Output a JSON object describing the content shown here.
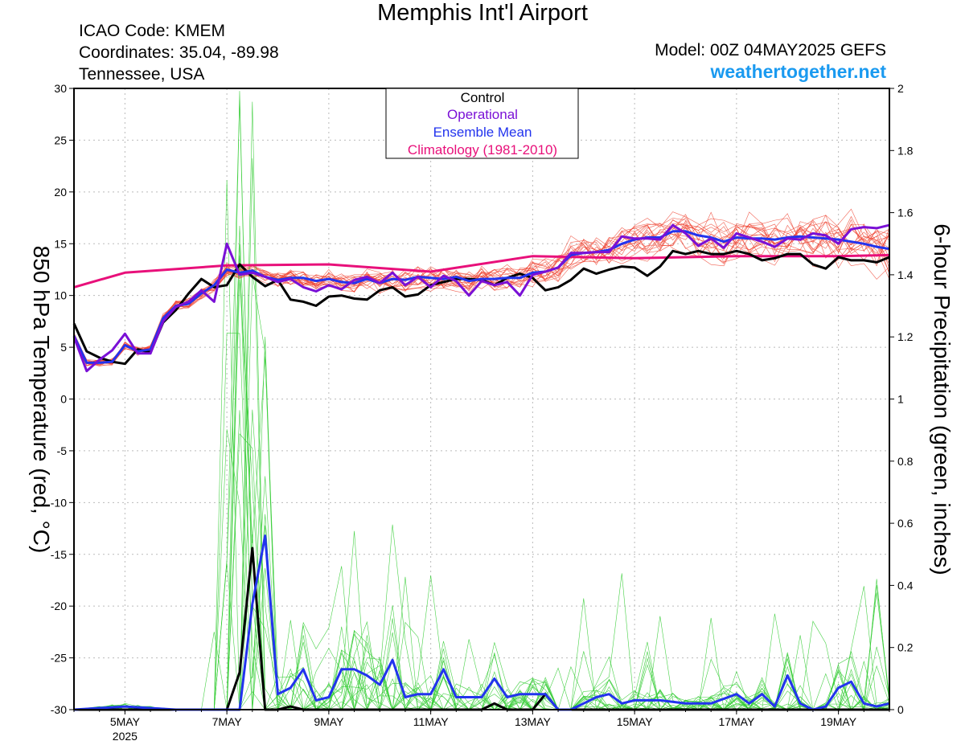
{
  "header": {
    "title": "Memphis Int'l Airport",
    "icao": "ICAO Code: KMEM",
    "coordinates": "Coordinates: 35.04, -89.98",
    "location": "Tennessee, USA",
    "model": "Model: 00Z 04MAY2025 GEFS",
    "site": "weathertogether.net"
  },
  "colors": {
    "control": "#000000",
    "operational": "#7a10d6",
    "ensemble_mean": "#2233ee",
    "climatology": "#e8107a",
    "members_temp": "#ee4433",
    "members_precip": "#33cc33",
    "site": "#1a9af0"
  },
  "chart_data": {
    "type": "line",
    "ylabel": "850 hPa Temperature (red, °C)",
    "y2label": "6-hour Precipitation (green, inches)",
    "ylim": [
      -30,
      30
    ],
    "y2lim": [
      0,
      2
    ],
    "yticks": [
      30,
      25,
      20,
      15,
      10,
      5,
      0,
      -5,
      -10,
      -15,
      -20,
      -25,
      -30
    ],
    "y2ticks": [
      2,
      1.8,
      1.6,
      1.4,
      1.2,
      1,
      0.8,
      0.6,
      0.4,
      0.2,
      0
    ],
    "xlim": [
      "2025-05-04T00",
      "2025-05-20T00"
    ],
    "xtick_labels": [
      {
        "date": "2025-05-05T00",
        "label": "5MAY",
        "sublabel": "2025"
      },
      {
        "date": "2025-05-07T00",
        "label": "7MAY"
      },
      {
        "date": "2025-05-09T00",
        "label": "9MAY"
      },
      {
        "date": "2025-05-11T00",
        "label": "11MAY"
      },
      {
        "date": "2025-05-13T00",
        "label": "13MAY"
      },
      {
        "date": "2025-05-15T00",
        "label": "15MAY"
      },
      {
        "date": "2025-05-17T00",
        "label": "17MAY"
      },
      {
        "date": "2025-05-19T00",
        "label": "19MAY"
      }
    ],
    "legend": {
      "placement": "top-center",
      "entries": [
        {
          "label": "Control",
          "color": "#000000"
        },
        {
          "label": "Operational",
          "color": "#7a10d6"
        },
        {
          "label": "Ensemble Mean",
          "color": "#2233ee"
        },
        {
          "label": "Climatology (1981-2010)",
          "color": "#e8107a"
        }
      ]
    },
    "series": [
      {
        "name": "Climatology (1981-2010)",
        "axis": "temperature",
        "x": [
          "2025-05-04T00",
          "2025-05-05T00",
          "2025-05-07T00",
          "2025-05-09T00",
          "2025-05-11T00",
          "2025-05-13T00",
          "2025-05-15T00",
          "2025-05-17T00",
          "2025-05-19T00",
          "2025-05-20T00"
        ],
        "values": [
          10.8,
          12.2,
          12.9,
          13.0,
          12.3,
          13.8,
          13.6,
          13.8,
          13.8,
          13.9
        ]
      },
      {
        "name": "Control",
        "axis": "temperature",
        "x": [
          "2025-05-04T00",
          "2025-05-04T06",
          "2025-05-04T12",
          "2025-05-04T18",
          "2025-05-05T00",
          "2025-05-05T06",
          "2025-05-05T12",
          "2025-05-05T18",
          "2025-05-06T00",
          "2025-05-06T06",
          "2025-05-06T12",
          "2025-05-06T18",
          "2025-05-07T00",
          "2025-05-07T06",
          "2025-05-07T12",
          "2025-05-07T18",
          "2025-05-08T00",
          "2025-05-08T06",
          "2025-05-08T12",
          "2025-05-08T18",
          "2025-05-09T00",
          "2025-05-09T06",
          "2025-05-09T12",
          "2025-05-09T18",
          "2025-05-10T00",
          "2025-05-10T06",
          "2025-05-10T12",
          "2025-05-10T18",
          "2025-05-11T00",
          "2025-05-11T06",
          "2025-05-11T12",
          "2025-05-11T18",
          "2025-05-12T00",
          "2025-05-12T06",
          "2025-05-12T12",
          "2025-05-12T18",
          "2025-05-13T00",
          "2025-05-13T06",
          "2025-05-13T12",
          "2025-05-13T18",
          "2025-05-14T00",
          "2025-05-14T06",
          "2025-05-14T12",
          "2025-05-14T18",
          "2025-05-15T00",
          "2025-05-15T06",
          "2025-05-15T12",
          "2025-05-15T18",
          "2025-05-16T00",
          "2025-05-16T06",
          "2025-05-16T12",
          "2025-05-16T18",
          "2025-05-17T00",
          "2025-05-17T06",
          "2025-05-17T12",
          "2025-05-17T18",
          "2025-05-18T00",
          "2025-05-18T06",
          "2025-05-18T12",
          "2025-05-18T18",
          "2025-05-19T00",
          "2025-05-19T06",
          "2025-05-19T12",
          "2025-05-19T18",
          "2025-05-20T00"
        ],
        "values": [
          7.3,
          4.6,
          4.0,
          3.6,
          3.4,
          4.8,
          4.5,
          7.4,
          8.6,
          10.2,
          11.6,
          10.8,
          11.0,
          13.0,
          11.8,
          10.9,
          11.5,
          9.6,
          9.4,
          9.0,
          9.9,
          10.0,
          9.7,
          9.6,
          10.5,
          10.8,
          9.9,
          10.1,
          11.0,
          11.3,
          11.6,
          11.6,
          11.5,
          11.0,
          11.7,
          12.1,
          11.7,
          10.5,
          10.8,
          11.5,
          12.6,
          12.1,
          12.5,
          12.8,
          12.7,
          11.9,
          12.8,
          14.3,
          14.0,
          14.3,
          14.0,
          14.0,
          14.3,
          14.0,
          13.4,
          13.6,
          14.0,
          14.0,
          13.0,
          12.6,
          13.7,
          13.4,
          13.4,
          13.2,
          13.7
        ]
      },
      {
        "name": "Operational",
        "axis": "temperature",
        "x": [
          "2025-05-04T00",
          "2025-05-04T06",
          "2025-05-04T12",
          "2025-05-04T18",
          "2025-05-05T00",
          "2025-05-05T06",
          "2025-05-05T12",
          "2025-05-05T18",
          "2025-05-06T00",
          "2025-05-06T06",
          "2025-05-06T12",
          "2025-05-06T18",
          "2025-05-07T00",
          "2025-05-07T06",
          "2025-05-07T12",
          "2025-05-07T18",
          "2025-05-08T00",
          "2025-05-08T06",
          "2025-05-08T12",
          "2025-05-08T18",
          "2025-05-09T00",
          "2025-05-09T06",
          "2025-05-09T12",
          "2025-05-09T18",
          "2025-05-10T00",
          "2025-05-10T06",
          "2025-05-10T12",
          "2025-05-10T18",
          "2025-05-11T00",
          "2025-05-11T06",
          "2025-05-11T12",
          "2025-05-11T18",
          "2025-05-12T00",
          "2025-05-12T06",
          "2025-05-12T12",
          "2025-05-12T18",
          "2025-05-13T00",
          "2025-05-13T06",
          "2025-05-13T12",
          "2025-05-13T18",
          "2025-05-14T00",
          "2025-05-14T06",
          "2025-05-14T12",
          "2025-05-14T18",
          "2025-05-15T00",
          "2025-05-15T06",
          "2025-05-15T12",
          "2025-05-15T18",
          "2025-05-16T00",
          "2025-05-16T06",
          "2025-05-16T12",
          "2025-05-16T18",
          "2025-05-17T00",
          "2025-05-17T06",
          "2025-05-17T12",
          "2025-05-17T18",
          "2025-05-18T00",
          "2025-05-18T06",
          "2025-05-18T12",
          "2025-05-18T18",
          "2025-05-19T00",
          "2025-05-19T06",
          "2025-05-19T12",
          "2025-05-19T18",
          "2025-05-20T00"
        ],
        "values": [
          6.0,
          2.7,
          3.8,
          4.7,
          6.3,
          4.4,
          4.4,
          7.5,
          8.9,
          9.4,
          10.5,
          9.4,
          15.0,
          12.0,
          12.2,
          11.8,
          11.3,
          11.6,
          10.8,
          10.4,
          11.0,
          10.6,
          11.5,
          11.8,
          11.2,
          12.2,
          11.0,
          11.8,
          10.8,
          11.9,
          11.4,
          10.0,
          11.4,
          11.0,
          11.3,
          10.0,
          12.0,
          12.3,
          12.7,
          14.1,
          14.1,
          14.2,
          14.2,
          15.7,
          15.5,
          15.5,
          15.4,
          16.8,
          16.0,
          14.8,
          15.5,
          14.6,
          16.0,
          15.6,
          15.2,
          14.7,
          15.5,
          15.4,
          16.0,
          15.8,
          15.0,
          16.4,
          16.6,
          16.5,
          16.8
        ]
      },
      {
        "name": "Ensemble Mean",
        "axis": "temperature",
        "x": [
          "2025-05-04T00",
          "2025-05-04T06",
          "2025-05-04T12",
          "2025-05-04T18",
          "2025-05-05T00",
          "2025-05-05T06",
          "2025-05-05T12",
          "2025-05-05T18",
          "2025-05-06T00",
          "2025-05-06T06",
          "2025-05-06T12",
          "2025-05-06T18",
          "2025-05-07T00",
          "2025-05-07T06",
          "2025-05-07T12",
          "2025-05-07T18",
          "2025-05-08T00",
          "2025-05-08T06",
          "2025-05-08T12",
          "2025-05-08T18",
          "2025-05-09T00",
          "2025-05-09T06",
          "2025-05-09T12",
          "2025-05-09T18",
          "2025-05-10T00",
          "2025-05-10T06",
          "2025-05-10T12",
          "2025-05-10T18",
          "2025-05-11T00",
          "2025-05-11T06",
          "2025-05-11T12",
          "2025-05-11T18",
          "2025-05-12T00",
          "2025-05-12T06",
          "2025-05-12T12",
          "2025-05-12T18",
          "2025-05-13T00",
          "2025-05-13T06",
          "2025-05-13T12",
          "2025-05-13T18",
          "2025-05-14T00",
          "2025-05-14T06",
          "2025-05-14T12",
          "2025-05-14T18",
          "2025-05-15T00",
          "2025-05-15T06",
          "2025-05-15T12",
          "2025-05-15T18",
          "2025-05-16T00",
          "2025-05-16T06",
          "2025-05-16T12",
          "2025-05-16T18",
          "2025-05-17T00",
          "2025-05-17T06",
          "2025-05-17T12",
          "2025-05-17T18",
          "2025-05-18T00",
          "2025-05-18T06",
          "2025-05-18T12",
          "2025-05-18T18",
          "2025-05-19T00",
          "2025-05-19T06",
          "2025-05-19T12",
          "2025-05-19T18",
          "2025-05-20T00"
        ],
        "values": [
          6.1,
          3.5,
          3.5,
          3.6,
          5.2,
          4.6,
          4.8,
          7.8,
          9.0,
          9.2,
          10.2,
          11.0,
          12.5,
          12.2,
          12.4,
          11.8,
          11.5,
          11.7,
          11.7,
          11.4,
          11.6,
          11.3,
          11.2,
          11.6,
          11.2,
          11.6,
          11.5,
          11.8,
          11.7,
          11.6,
          11.8,
          11.4,
          11.6,
          11.6,
          11.7,
          11.7,
          12.2,
          12.3,
          12.7,
          13.9,
          14.1,
          14.2,
          14.4,
          15.0,
          15.4,
          15.6,
          15.6,
          16.2,
          16.2,
          15.8,
          15.6,
          15.2,
          15.6,
          15.5,
          15.5,
          15.4,
          15.6,
          15.7,
          15.6,
          15.5,
          15.4,
          15.2,
          15.0,
          14.7,
          14.5
        ]
      },
      {
        "name": "Ensemble Mean",
        "axis": "precipitation",
        "x": [
          "2025-05-04T00",
          "2025-05-05T00",
          "2025-05-06T00",
          "2025-05-07T00",
          "2025-05-07T06",
          "2025-05-07T12",
          "2025-05-07T18",
          "2025-05-08T00",
          "2025-05-08T06",
          "2025-05-08T12",
          "2025-05-08T18",
          "2025-05-09T00",
          "2025-05-09T06",
          "2025-05-09T12",
          "2025-05-09T18",
          "2025-05-10T00",
          "2025-05-10T06",
          "2025-05-10T12",
          "2025-05-10T18",
          "2025-05-11T00",
          "2025-05-11T06",
          "2025-05-11T12",
          "2025-05-11T18",
          "2025-05-12T00",
          "2025-05-12T06",
          "2025-05-12T12",
          "2025-05-12T18",
          "2025-05-13T00",
          "2025-05-13T06",
          "2025-05-13T12",
          "2025-05-13T18",
          "2025-05-14T00",
          "2025-05-14T06",
          "2025-05-14T12",
          "2025-05-14T18",
          "2025-05-15T00",
          "2025-05-15T12",
          "2025-05-16T00",
          "2025-05-16T12",
          "2025-05-17T00",
          "2025-05-17T06",
          "2025-05-17T12",
          "2025-05-17T18",
          "2025-05-18T00",
          "2025-05-18T06",
          "2025-05-18T12",
          "2025-05-18T18",
          "2025-05-19T00",
          "2025-05-19T06",
          "2025-05-19T12",
          "2025-05-19T18",
          "2025-05-20T00"
        ],
        "values": [
          0.0,
          0.01,
          0.0,
          0.0,
          0.0,
          0.34,
          0.56,
          0.05,
          0.07,
          0.13,
          0.03,
          0.04,
          0.13,
          0.13,
          0.11,
          0.08,
          0.16,
          0.04,
          0.05,
          0.05,
          0.13,
          0.04,
          0.04,
          0.04,
          0.1,
          0.04,
          0.05,
          0.05,
          0.05,
          0.0,
          0.0,
          0.02,
          0.04,
          0.05,
          0.02,
          0.03,
          0.03,
          0.02,
          0.02,
          0.05,
          0.02,
          0.05,
          0.01,
          0.11,
          0.02,
          0.0,
          0.01,
          0.07,
          0.09,
          0.02,
          0.01,
          0.02
        ]
      },
      {
        "name": "Control",
        "axis": "precipitation",
        "x": [
          "2025-05-04T00",
          "2025-05-07T00",
          "2025-05-07T06",
          "2025-05-07T12",
          "2025-05-07T18",
          "2025-05-08T00",
          "2025-05-08T06",
          "2025-05-08T12",
          "2025-05-08T18",
          "2025-05-12T00",
          "2025-05-12T06",
          "2025-05-12T12",
          "2025-05-13T00",
          "2025-05-13T06",
          "2025-05-13T12",
          "2025-05-20T00"
        ],
        "values": [
          0.0,
          0.0,
          0.12,
          0.52,
          0.0,
          0.0,
          0.01,
          0.0,
          0.0,
          0.0,
          0.02,
          0.0,
          0.0,
          0.05,
          0.0,
          0.0
        ]
      }
    ]
  }
}
